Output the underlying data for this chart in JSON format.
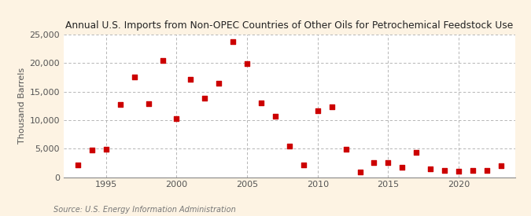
{
  "title": "Annual U.S. Imports from Non-OPEC Countries of Other Oils for Petrochemical Feedstock Use",
  "ylabel": "Thousand Barrels",
  "source": "Source: U.S. Energy Information Administration",
  "background_color": "#fdf3e3",
  "plot_background_color": "#ffffff",
  "marker_color": "#cc0000",
  "years": [
    1993,
    1994,
    1995,
    1996,
    1997,
    1998,
    1999,
    2000,
    2001,
    2002,
    2003,
    2004,
    2005,
    2006,
    2007,
    2008,
    2009,
    2010,
    2011,
    2012,
    2013,
    2014,
    2015,
    2016,
    2017,
    2018,
    2019,
    2020,
    2021,
    2022,
    2023
  ],
  "values": [
    2100,
    4700,
    4900,
    12800,
    17600,
    12900,
    20500,
    10300,
    17200,
    13900,
    16500,
    23700,
    19900,
    13000,
    10700,
    5500,
    2200,
    11700,
    12300,
    4900,
    900,
    2600,
    2600,
    1700,
    4300,
    1500,
    1200,
    1100,
    1200,
    1200,
    2000
  ],
  "ylim": [
    0,
    25000
  ],
  "xlim": [
    1992,
    2024
  ],
  "yticks": [
    0,
    5000,
    10000,
    15000,
    20000,
    25000
  ],
  "xticks": [
    1995,
    2000,
    2005,
    2010,
    2015,
    2020
  ],
  "grid_color": "#aaaaaa",
  "title_fontsize": 8.8,
  "axis_fontsize": 8,
  "tick_fontsize": 8,
  "source_fontsize": 7
}
